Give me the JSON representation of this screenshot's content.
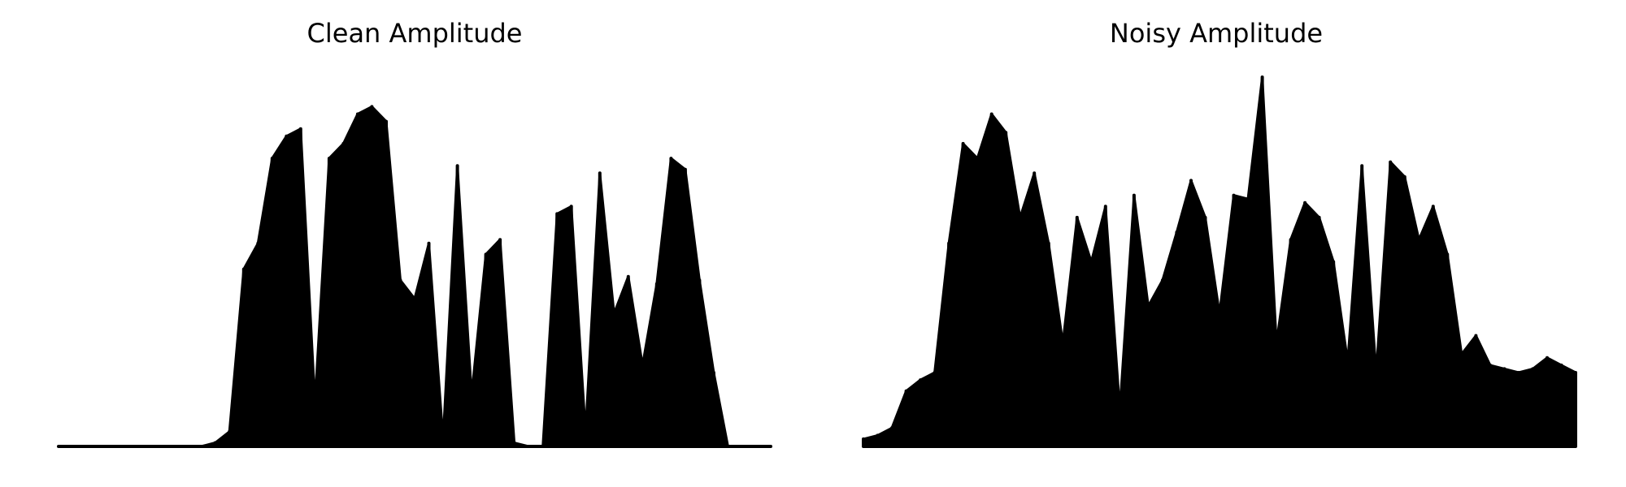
{
  "chart_data": [
    {
      "type": "area",
      "title": "Clean Amplitude",
      "xlabel": "",
      "ylabel": "",
      "ylim": [
        0,
        1
      ],
      "grid": false,
      "axes_visible": false,
      "color": "#000000",
      "x": [
        0,
        2,
        4,
        6,
        8,
        10,
        12,
        14,
        16,
        18,
        20,
        22,
        24,
        26,
        28,
        30,
        32,
        34,
        36,
        38,
        40,
        42,
        44,
        46,
        48,
        50,
        52,
        54,
        56,
        58,
        60,
        62,
        64,
        66,
        68,
        70,
        72,
        74,
        76,
        78,
        80,
        82,
        84,
        86,
        88,
        90,
        92,
        94,
        96,
        98,
        100
      ],
      "values": [
        0,
        0,
        0,
        0,
        0,
        0,
        0,
        0,
        0,
        0,
        0,
        0.01,
        0.04,
        0.48,
        0.55,
        0.78,
        0.84,
        0.86,
        0.12,
        0.78,
        0.82,
        0.9,
        0.92,
        0.88,
        0.45,
        0.4,
        0.55,
        0.02,
        0.76,
        0.14,
        0.52,
        0.56,
        0.01,
        0,
        0,
        0.63,
        0.65,
        0.04,
        0.74,
        0.36,
        0.46,
        0.22,
        0.44,
        0.78,
        0.75,
        0.45,
        0.2,
        0,
        0,
        0,
        0
      ]
    },
    {
      "type": "area",
      "title": "Noisy Amplitude",
      "xlabel": "",
      "ylabel": "",
      "ylim": [
        0,
        1
      ],
      "grid": false,
      "axes_visible": false,
      "color": "#000000",
      "x": [
        0,
        2,
        4,
        6,
        8,
        10,
        12,
        14,
        16,
        18,
        20,
        22,
        24,
        26,
        28,
        30,
        32,
        34,
        36,
        38,
        40,
        42,
        44,
        46,
        48,
        50,
        52,
        54,
        56,
        58,
        60,
        62,
        64,
        66,
        68,
        70,
        72,
        74,
        76,
        78,
        80,
        82,
        84,
        86,
        88,
        90,
        92,
        94,
        96,
        98,
        100
      ],
      "values": [
        0.02,
        0.03,
        0.05,
        0.15,
        0.18,
        0.2,
        0.55,
        0.82,
        0.78,
        0.9,
        0.85,
        0.62,
        0.74,
        0.55,
        0.28,
        0.62,
        0.5,
        0.65,
        0.1,
        0.68,
        0.38,
        0.45,
        0.58,
        0.72,
        0.62,
        0.36,
        0.68,
        0.67,
        1.0,
        0.28,
        0.56,
        0.66,
        0.62,
        0.5,
        0.23,
        0.76,
        0.2,
        0.77,
        0.73,
        0.56,
        0.65,
        0.52,
        0.25,
        0.3,
        0.22,
        0.21,
        0.2,
        0.21,
        0.24,
        0.22,
        0.2
      ]
    }
  ]
}
